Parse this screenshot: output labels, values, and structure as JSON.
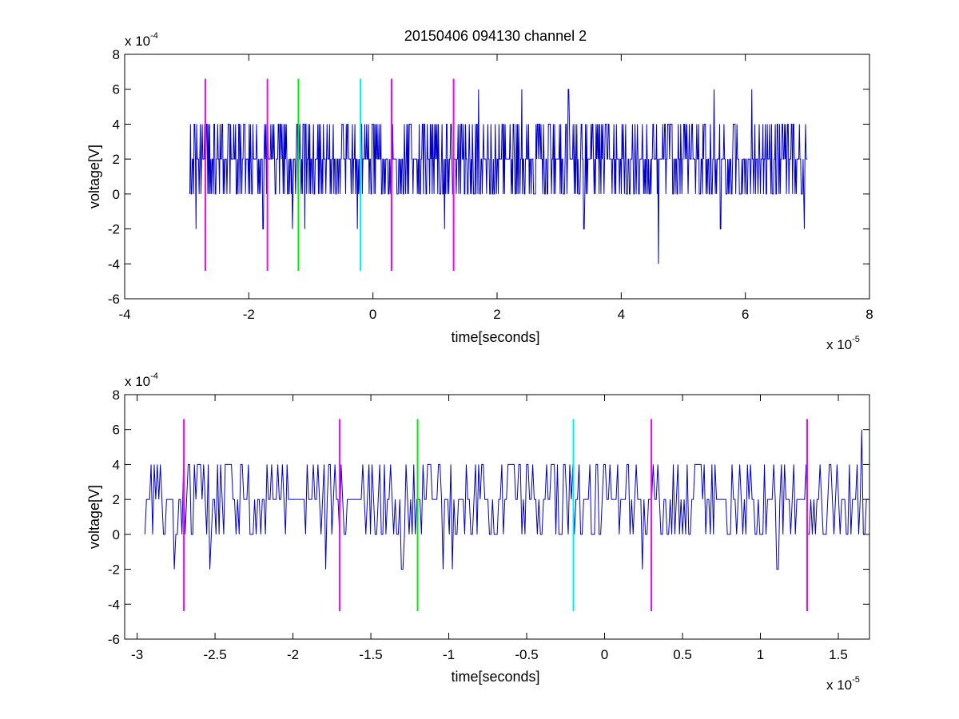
{
  "title": "20150406 094130 channel 2",
  "colors": {
    "signal": "#0000cc",
    "magenta_marker": "#ff00ff",
    "green_marker": "#00ee00",
    "cyan_marker": "#00eeee",
    "axes": "#000000"
  },
  "chart_data": [
    {
      "type": "line",
      "title": "20150406 094130 channel 2",
      "xlabel": "time[seconds]",
      "ylabel": "voltage[V]",
      "x_multiplier": "x 10",
      "x_multiplier_exp": "-5",
      "y_multiplier": "x 10",
      "y_multiplier_exp": "-4",
      "xlim": [
        -4,
        8
      ],
      "ylim": [
        -6,
        8
      ],
      "xticks": [
        -4,
        -2,
        0,
        2,
        4,
        6,
        8
      ],
      "xtick_labels": [
        "-4",
        "-2",
        "0",
        "2",
        "4",
        "6",
        "8"
      ],
      "yticks": [
        -6,
        -4,
        -2,
        0,
        2,
        4,
        6,
        8
      ],
      "ytick_labels": [
        "-6",
        "-4",
        "-2",
        "0",
        "2",
        "4",
        "6",
        "8"
      ],
      "grid": false,
      "signal": {
        "x_start": -2.95,
        "x_end": 7.0,
        "sample_count": 1000,
        "levels": [
          -4,
          -2,
          0,
          2,
          4,
          6
        ],
        "baseline_level": 2,
        "spikes": [
          {
            "x": -2.85,
            "y": -2
          },
          {
            "x": -1.77,
            "y": -2
          },
          {
            "x": -1.3,
            "y": -2
          },
          {
            "x": -1.1,
            "y": -2
          },
          {
            "x": -0.25,
            "y": -2
          },
          {
            "x": 1.15,
            "y": -2
          },
          {
            "x": 3.4,
            "y": -2
          },
          {
            "x": 4.6,
            "y": -4
          },
          {
            "x": 5.6,
            "y": -2
          },
          {
            "x": 6.95,
            "y": -2
          },
          {
            "x": 1.7,
            "y": 6
          },
          {
            "x": 2.4,
            "y": 6
          },
          {
            "x": 3.15,
            "y": 6
          },
          {
            "x": 5.5,
            "y": 6
          },
          {
            "x": 6.1,
            "y": 6
          }
        ]
      },
      "markers": [
        {
          "x": -2.7,
          "color": "magenta",
          "y_range": [
            -4.4,
            6.6
          ]
        },
        {
          "x": -1.7,
          "color": "magenta",
          "y_range": [
            -4.4,
            6.6
          ]
        },
        {
          "x": -1.2,
          "color": "green",
          "y_range": [
            -4.4,
            6.6
          ]
        },
        {
          "x": -0.2,
          "color": "cyan",
          "y_range": [
            -4.4,
            6.6
          ]
        },
        {
          "x": 0.3,
          "color": "magenta",
          "y_range": [
            -4.4,
            6.6
          ]
        },
        {
          "x": 1.3,
          "color": "magenta",
          "y_range": [
            -4.4,
            6.6
          ]
        }
      ]
    },
    {
      "type": "line",
      "title": "",
      "xlabel": "time[seconds]",
      "ylabel": "voltage[V]",
      "x_multiplier": "x 10",
      "x_multiplier_exp": "-5",
      "y_multiplier": "x 10",
      "y_multiplier_exp": "-4",
      "xlim": [
        -3.08,
        1.7
      ],
      "ylim": [
        -6,
        8
      ],
      "xticks": [
        -3,
        -2.5,
        -2,
        -1.5,
        -1,
        -0.5,
        0,
        0.5,
        1,
        1.5
      ],
      "xtick_labels": [
        "-3",
        "-2.5",
        "-2",
        "-1.5",
        "-1",
        "-0.5",
        "0",
        "0.5",
        "1",
        "1.5"
      ],
      "yticks": [
        -6,
        -4,
        -2,
        0,
        2,
        4,
        6,
        8
      ],
      "ytick_labels": [
        "-6",
        "-4",
        "-2",
        "0",
        "2",
        "4",
        "6",
        "8"
      ],
      "grid": false,
      "signal": {
        "x_start": -2.95,
        "x_end": 1.7,
        "sample_count": 470,
        "levels": [
          -2,
          0,
          2,
          4,
          6
        ],
        "baseline_level": 2,
        "spikes": [
          {
            "x": -2.76,
            "y": -2
          },
          {
            "x": -2.53,
            "y": -2
          },
          {
            "x": -1.79,
            "y": -2
          },
          {
            "x": -1.3,
            "y": -2
          },
          {
            "x": -1.04,
            "y": -2
          },
          {
            "x": -0.98,
            "y": -2
          },
          {
            "x": 0.24,
            "y": -2
          },
          {
            "x": 1.11,
            "y": -2
          },
          {
            "x": 1.65,
            "y": 6
          }
        ]
      },
      "markers": [
        {
          "x": -2.7,
          "color": "magenta",
          "y_range": [
            -4.4,
            6.6
          ]
        },
        {
          "x": -1.7,
          "color": "magenta",
          "y_range": [
            -4.4,
            6.6
          ]
        },
        {
          "x": -1.2,
          "color": "green",
          "y_range": [
            -4.4,
            6.6
          ]
        },
        {
          "x": -0.2,
          "color": "cyan",
          "y_range": [
            -4.4,
            6.6
          ]
        },
        {
          "x": 0.3,
          "color": "magenta",
          "y_range": [
            -4.4,
            6.6
          ]
        },
        {
          "x": 1.3,
          "color": "magenta",
          "y_range": [
            -4.4,
            6.6
          ]
        }
      ]
    }
  ]
}
